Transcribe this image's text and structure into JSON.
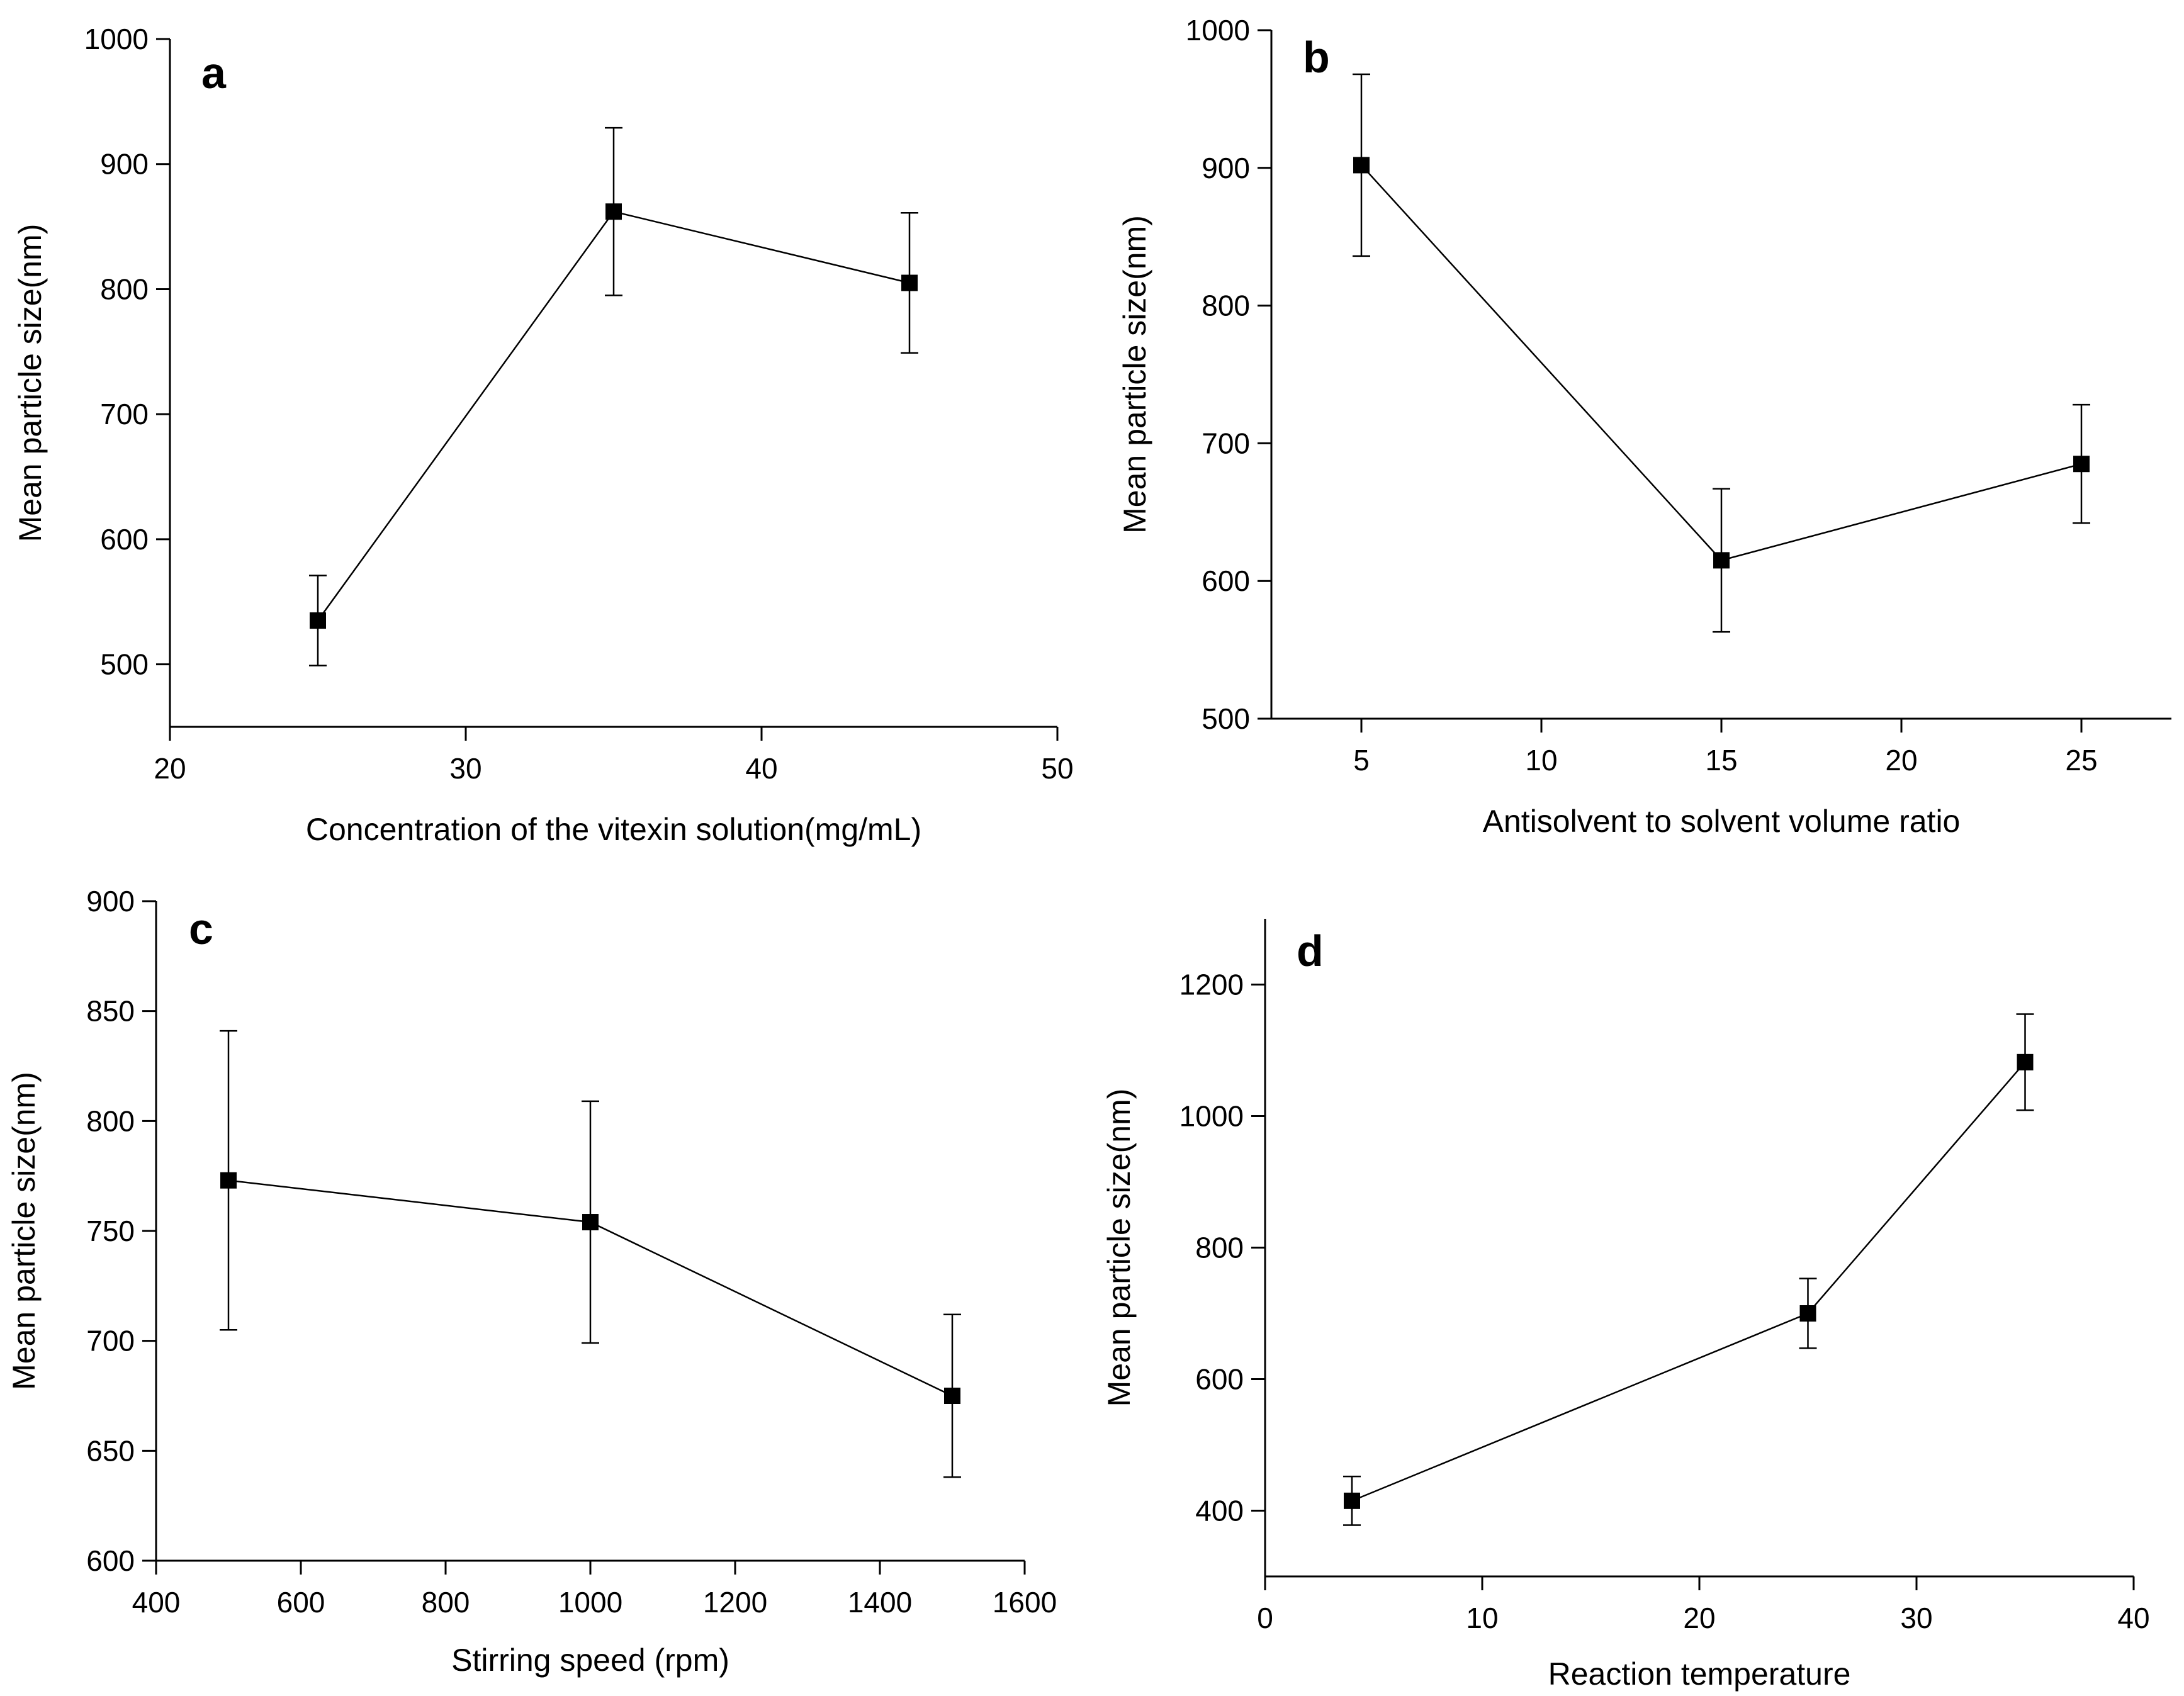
{
  "chart_data": [
    {
      "panel": "a",
      "type": "line",
      "title": "",
      "xlabel": "Concentration of the vitexin solution(mg/mL)",
      "ylabel": "Mean particle size(nm)",
      "xlim": [
        20,
        50
      ],
      "ylim": [
        450,
        1000
      ],
      "xticks": [
        20,
        30,
        40,
        50
      ],
      "yticks": [
        500,
        600,
        700,
        800,
        900,
        1000
      ],
      "x": [
        25,
        35,
        45
      ],
      "y": [
        535,
        862,
        805
      ],
      "error": [
        36,
        67,
        56
      ]
    },
    {
      "panel": "b",
      "type": "line",
      "title": "",
      "xlabel": "Antisolvent to solvent volume ratio",
      "ylabel": "Mean particle size(nm)",
      "xlim": [
        2.5,
        27.5
      ],
      "ylim": [
        500,
        1000
      ],
      "xticks": [
        5,
        10,
        15,
        20,
        25
      ],
      "yticks": [
        500,
        600,
        700,
        800,
        900,
        1000
      ],
      "x": [
        5,
        15,
        25
      ],
      "y": [
        902,
        615,
        685
      ],
      "error": [
        66,
        52,
        43
      ]
    },
    {
      "panel": "c",
      "type": "line",
      "title": "",
      "xlabel": "Stirring  speed (rpm)",
      "ylabel": "Mean particle size(nm)",
      "xlim": [
        400,
        1600
      ],
      "ylim": [
        600,
        900
      ],
      "xticks": [
        400,
        600,
        800,
        1000,
        1200,
        1400,
        1600
      ],
      "yticks": [
        600,
        650,
        700,
        750,
        800,
        850,
        900
      ],
      "x": [
        500,
        1000,
        1500
      ],
      "y": [
        773,
        754,
        675
      ],
      "error": [
        68,
        55,
        37
      ]
    },
    {
      "panel": "d",
      "type": "line",
      "title": "",
      "xlabel": "Reaction temperature",
      "ylabel": "Mean particle size(nm)",
      "xlim": [
        0,
        40
      ],
      "ylim": [
        300,
        1300
      ],
      "xticks": [
        0,
        10,
        20,
        30,
        40
      ],
      "yticks": [
        400,
        600,
        800,
        1000,
        1200
      ],
      "x": [
        4,
        25,
        35
      ],
      "y": [
        415,
        700,
        1082
      ],
      "error": [
        37,
        53,
        73
      ]
    }
  ]
}
